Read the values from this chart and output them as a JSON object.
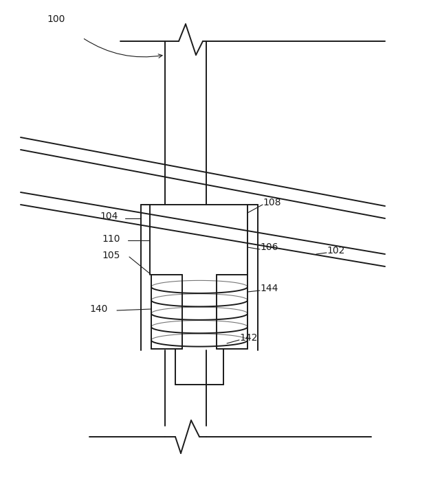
{
  "bg_color": "#ffffff",
  "line_color": "#1a1a1a",
  "lw": 1.4,
  "thin_lw": 0.8,
  "fig_w": 6.4,
  "fig_h": 6.96
}
